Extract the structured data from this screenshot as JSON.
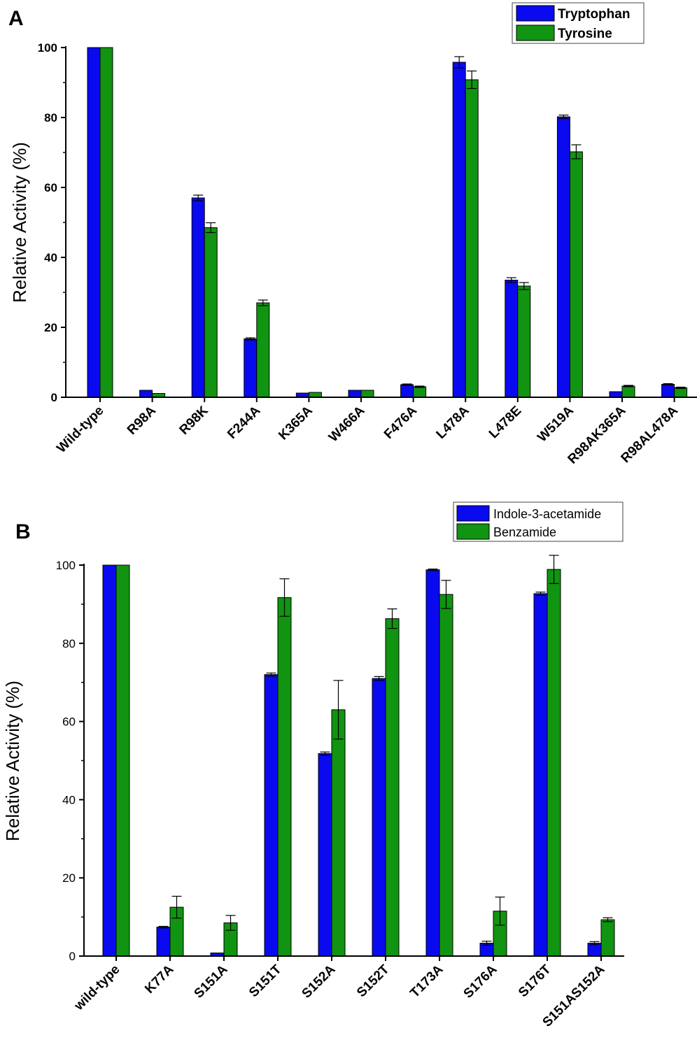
{
  "colors": {
    "series1": "#0a0af0",
    "series2": "#119411",
    "axis": "#000000"
  },
  "chart_data": [
    {
      "type": "bar",
      "panel_label": "A",
      "ylabel": "Relative Activity (%)",
      "xlabel": "",
      "ylim": [
        0,
        100
      ],
      "yticks": [
        "0",
        "20",
        "40",
        "60",
        "80",
        "100"
      ],
      "legend_position": "top-right",
      "categories": [
        "Wild-type",
        "R98A",
        "R98K",
        "F244A",
        "K365A",
        "W466A",
        "F476A",
        "L478A",
        "L478E",
        "W519A",
        "R98AK365A",
        "R98AL478A"
      ],
      "series": [
        {
          "name": "Tryptophan",
          "values": [
            100,
            2,
            57,
            16.7,
            1.2,
            2,
            3.6,
            95.8,
            33.5,
            80.2,
            1.6,
            3.7
          ],
          "errors": [
            0,
            0,
            0.8,
            0.3,
            0,
            0,
            0.2,
            1.6,
            0.7,
            0.5,
            0,
            0.2
          ]
        },
        {
          "name": "Tyrosine",
          "values": [
            100,
            1.1,
            48.5,
            27,
            1.4,
            2,
            3,
            90.8,
            31.8,
            70.2,
            3.2,
            2.7
          ],
          "errors": [
            0,
            0,
            1.4,
            0.8,
            0,
            0,
            0.2,
            2.5,
            1,
            2,
            0.2,
            0.2
          ]
        }
      ]
    },
    {
      "type": "bar",
      "panel_label": "B",
      "ylabel": "Relative Activity (%)",
      "xlabel": "",
      "ylim": [
        0,
        100
      ],
      "yticks": [
        "0",
        "20",
        "40",
        "60",
        "80",
        "100"
      ],
      "legend_position": "top-right",
      "categories": [
        "wild-type",
        "K77A",
        "S151A",
        "S151T",
        "S152A",
        "S152T",
        "T173A",
        "S176A",
        "S176T",
        "S151AS152A"
      ],
      "series": [
        {
          "name": "Indole-3-acetamide",
          "values": [
            100,
            7.4,
            0.8,
            72,
            51.8,
            71,
            98.8,
            3.3,
            92.7,
            3.3
          ],
          "errors": [
            0,
            0.2,
            0,
            0.4,
            0.4,
            0.5,
            0.2,
            0.5,
            0.4,
            0.4
          ]
        },
        {
          "name": "Benzamide",
          "values": [
            100,
            12.5,
            8.5,
            91.7,
            63,
            86.3,
            92.5,
            11.5,
            98.9,
            9.3
          ],
          "errors": [
            0,
            2.8,
            1.9,
            4.8,
            7.5,
            2.5,
            3.6,
            3.6,
            3.6,
            0.5
          ]
        }
      ]
    }
  ]
}
